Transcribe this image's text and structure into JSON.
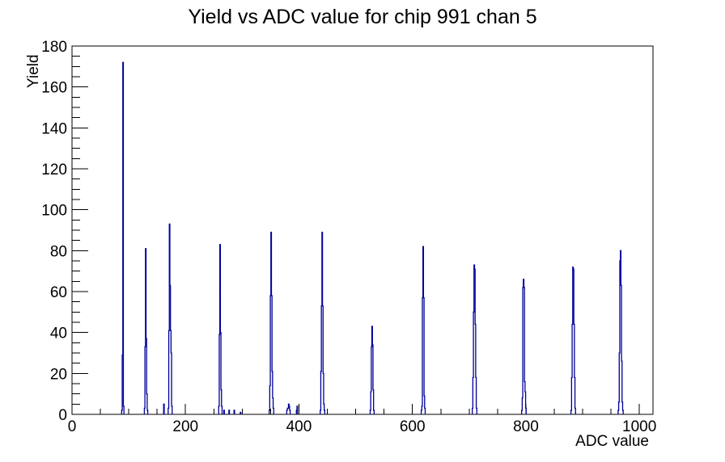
{
  "chart_data": {
    "type": "bar",
    "title": "Yield vs ADC value for chip 991 chan 5",
    "xlabel": "ADC value",
    "ylabel": "Yield",
    "xlim": [
      0,
      1024
    ],
    "ylim": [
      0,
      180
    ],
    "grid": false,
    "x_major_ticks": [
      {
        "v": 0,
        "label": "0"
      },
      {
        "v": 200,
        "label": "200"
      },
      {
        "v": 400,
        "label": "400"
      },
      {
        "v": 600,
        "label": "600"
      },
      {
        "v": 800,
        "label": "800"
      },
      {
        "v": 1000,
        "label": "1000"
      }
    ],
    "x_minor_step": 50,
    "y_major_ticks": [
      {
        "v": 0,
        "label": "0"
      },
      {
        "v": 20,
        "label": "20"
      },
      {
        "v": 40,
        "label": "40"
      },
      {
        "v": 60,
        "label": "60"
      },
      {
        "v": 80,
        "label": "80"
      },
      {
        "v": 100,
        "label": "100"
      },
      {
        "v": 120,
        "label": "120"
      },
      {
        "v": 140,
        "label": "140"
      },
      {
        "v": 160,
        "label": "160"
      },
      {
        "v": 180,
        "label": "180"
      }
    ],
    "y_minor_step": 5,
    "axis_color": "#000000",
    "line_color": "#000099",
    "bin_width": 1,
    "bins": [
      [
        88,
        2
      ],
      [
        89,
        29
      ],
      [
        90,
        172
      ],
      [
        91,
        4
      ],
      [
        128,
        3
      ],
      [
        129,
        33
      ],
      [
        130,
        81
      ],
      [
        131,
        37
      ],
      [
        132,
        10
      ],
      [
        133,
        2
      ],
      [
        162,
        5
      ],
      [
        170,
        3
      ],
      [
        171,
        41
      ],
      [
        172,
        93
      ],
      [
        173,
        63
      ],
      [
        174,
        41
      ],
      [
        175,
        30
      ],
      [
        176,
        4
      ],
      [
        259,
        4
      ],
      [
        260,
        39
      ],
      [
        261,
        83
      ],
      [
        262,
        40
      ],
      [
        263,
        12
      ],
      [
        264,
        4
      ],
      [
        268,
        2
      ],
      [
        277,
        2
      ],
      [
        286,
        2
      ],
      [
        297,
        1
      ],
      [
        348,
        2
      ],
      [
        349,
        14
      ],
      [
        350,
        58
      ],
      [
        351,
        89
      ],
      [
        352,
        58
      ],
      [
        353,
        21
      ],
      [
        354,
        8
      ],
      [
        355,
        3
      ],
      [
        379,
        2
      ],
      [
        380,
        3
      ],
      [
        381,
        3
      ],
      [
        382,
        5
      ],
      [
        383,
        4
      ],
      [
        384,
        2
      ],
      [
        396,
        2
      ],
      [
        397,
        4
      ],
      [
        438,
        2
      ],
      [
        439,
        21
      ],
      [
        440,
        53
      ],
      [
        441,
        89
      ],
      [
        442,
        53
      ],
      [
        443,
        20
      ],
      [
        444,
        5
      ],
      [
        445,
        2
      ],
      [
        526,
        2
      ],
      [
        527,
        11
      ],
      [
        528,
        33
      ],
      [
        529,
        43
      ],
      [
        530,
        34
      ],
      [
        531,
        12
      ],
      [
        532,
        2
      ],
      [
        616,
        2
      ],
      [
        617,
        4
      ],
      [
        618,
        57
      ],
      [
        619,
        82
      ],
      [
        620,
        57
      ],
      [
        621,
        9
      ],
      [
        622,
        3
      ],
      [
        706,
        3
      ],
      [
        707,
        18
      ],
      [
        708,
        50
      ],
      [
        709,
        73
      ],
      [
        710,
        71
      ],
      [
        711,
        44
      ],
      [
        712,
        18
      ],
      [
        713,
        3
      ],
      [
        793,
        2
      ],
      [
        794,
        8
      ],
      [
        795,
        62
      ],
      [
        796,
        66
      ],
      [
        797,
        62
      ],
      [
        798,
        16
      ],
      [
        799,
        11
      ],
      [
        800,
        3
      ],
      [
        880,
        2
      ],
      [
        881,
        18
      ],
      [
        882,
        44
      ],
      [
        883,
        72
      ],
      [
        884,
        71
      ],
      [
        885,
        44
      ],
      [
        886,
        18
      ],
      [
        887,
        3
      ],
      [
        963,
        2
      ],
      [
        964,
        6
      ],
      [
        965,
        30
      ],
      [
        966,
        75
      ],
      [
        967,
        80
      ],
      [
        968,
        63
      ],
      [
        969,
        26
      ],
      [
        970,
        6
      ],
      [
        971,
        2
      ]
    ]
  }
}
